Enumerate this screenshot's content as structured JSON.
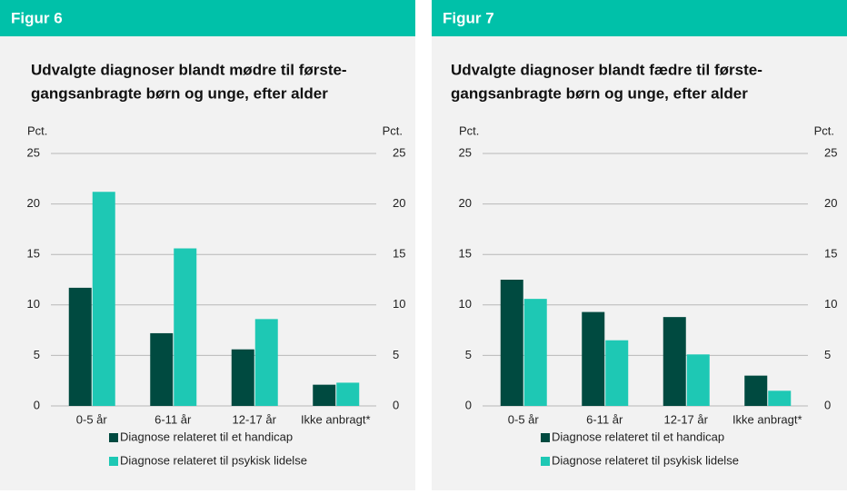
{
  "chart_data": [
    {
      "type": "bar",
      "figure_label": "Figur 6",
      "title_lines": [
        "Udvalgte diagnoser blandt mødre til første-",
        "gangsanbragte børn og unge, efter alder"
      ],
      "y_label": "Pct.",
      "y2_label": "Pct.",
      "categories": [
        "0-5 år",
        "6-11 år",
        "12-17 år",
        "Ikke anbragt*"
      ],
      "series": [
        {
          "name": "Diagnose relateret til et handicap",
          "color": "#004a40",
          "values": [
            11.7,
            7.2,
            5.6,
            2.1
          ]
        },
        {
          "name": "Diagnose relateret til psykisk lidelse",
          "color": "#1ec8b4",
          "values": [
            21.2,
            15.6,
            8.6,
            2.3
          ]
        }
      ],
      "ylim": [
        0,
        25
      ],
      "yticks": [
        0,
        5,
        10,
        15,
        20,
        25
      ],
      "y2lim": [
        0,
        25
      ],
      "y2ticks": [
        0,
        5,
        10,
        15,
        20,
        25
      ],
      "grid": true
    },
    {
      "type": "bar",
      "figure_label": "Figur 7",
      "title_lines": [
        "Udvalgte diagnoser blandt fædre til første-",
        "gangsanbragte børn og unge, efter alder"
      ],
      "y_label": "Pct.",
      "y2_label": "Pct.",
      "categories": [
        "0-5 år",
        "6-11 år",
        "12-17 år",
        "Ikke anbragt*"
      ],
      "series": [
        {
          "name": "Diagnose relateret til et handicap",
          "color": "#004a40",
          "values": [
            12.5,
            9.3,
            8.8,
            3.0
          ]
        },
        {
          "name": "Diagnose relateret til psykisk lidelse",
          "color": "#1ec8b4",
          "values": [
            10.6,
            6.5,
            5.1,
            1.5
          ]
        }
      ],
      "ylim": [
        0,
        25
      ],
      "yticks": [
        0,
        5,
        10,
        15,
        20,
        25
      ],
      "y2lim": [
        0,
        25
      ],
      "y2ticks": [
        0,
        5,
        10,
        15,
        20,
        25
      ],
      "grid": true
    }
  ]
}
